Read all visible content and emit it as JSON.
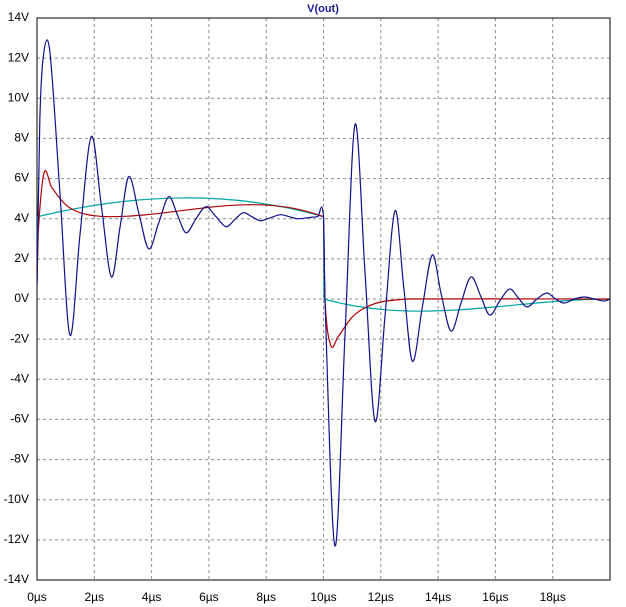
{
  "chart_data": {
    "type": "line",
    "title": "V(out)",
    "title_color": "#1a1aa0",
    "xlim": [
      0,
      20
    ],
    "ylim": [
      -14,
      14
    ],
    "xticks": [
      {
        "value": 0,
        "label": "0µs"
      },
      {
        "value": 2,
        "label": "2µs"
      },
      {
        "value": 4,
        "label": "4µs"
      },
      {
        "value": 6,
        "label": "6µs"
      },
      {
        "value": 8,
        "label": "8µs"
      },
      {
        "value": 10,
        "label": "10µs"
      },
      {
        "value": 12,
        "label": "12µs"
      },
      {
        "value": 14,
        "label": "14µs"
      },
      {
        "value": 16,
        "label": "16µs"
      },
      {
        "value": 18,
        "label": "18µs"
      }
    ],
    "yticks": [
      {
        "value": -14,
        "label": "-14V"
      },
      {
        "value": -12,
        "label": "-12V"
      },
      {
        "value": -10,
        "label": "-10V"
      },
      {
        "value": -8,
        "label": "-8V"
      },
      {
        "value": -6,
        "label": "-6V"
      },
      {
        "value": -4,
        "label": "-4V"
      },
      {
        "value": -2,
        "label": "-2V"
      },
      {
        "value": 0,
        "label": "0V"
      },
      {
        "value": 2,
        "label": "2V"
      },
      {
        "value": 4,
        "label": "4V"
      },
      {
        "value": 6,
        "label": "6V"
      },
      {
        "value": 8,
        "label": "8V"
      },
      {
        "value": 10,
        "label": "10V"
      },
      {
        "value": 12,
        "label": "12V"
      },
      {
        "value": 14,
        "label": "14V"
      }
    ],
    "grid": true,
    "series": [
      {
        "color": "#00a6a6",
        "x": [
          0,
          0.02,
          10,
          10.02,
          20
        ],
        "values": [
          0.7,
          4.1,
          4.1,
          0,
          0
        ]
      },
      {
        "color": "#b00000",
        "x": [
          0,
          0.05,
          0.25,
          0.5,
          1,
          1.5,
          2,
          2.5,
          10,
          10.05,
          10.25,
          10.5,
          11,
          11.5,
          12,
          12.5,
          13,
          20
        ],
        "values": [
          0.7,
          3.5,
          6.3,
          5.6,
          4.7,
          4.3,
          4.15,
          4.1,
          4.1,
          0,
          -2.3,
          -1.9,
          -0.9,
          -0.4,
          -0.15,
          -0.05,
          0,
          0
        ]
      },
      {
        "color": "#10108c",
        "x": [
          0,
          0.1,
          0.25,
          0.45,
          0.8,
          1.15,
          1.5,
          1.9,
          2.25,
          2.6,
          2.9,
          3.2,
          3.55,
          3.9,
          4.25,
          4.6,
          4.9,
          5.2,
          5.55,
          5.9,
          6.25,
          6.6,
          6.9,
          7.2,
          7.5,
          7.8,
          8.15,
          8.5,
          8.8,
          9.1,
          9.45,
          9.8,
          10,
          10.05,
          10.4,
          10.75,
          11.1,
          11.45,
          11.8,
          12.15,
          12.5,
          12.8,
          13.1,
          13.45,
          13.8,
          14.1,
          14.45,
          14.8,
          15.15,
          15.5,
          15.8,
          16.15,
          16.5,
          16.8,
          17.1,
          17.45,
          17.8,
          18.1,
          18.4,
          18.75,
          19.1,
          19.45,
          19.8,
          20
        ],
        "values": [
          0.7,
          9,
          12.4,
          12.3,
          5.3,
          -1.8,
          3.2,
          8.1,
          4.6,
          1.1,
          3.6,
          6.1,
          4.3,
          2.5,
          3.8,
          5.1,
          4.2,
          3.3,
          4.0,
          4.6,
          4.1,
          3.6,
          3.95,
          4.3,
          4.1,
          3.9,
          4.05,
          4.2,
          4.1,
          4.0,
          4.05,
          4.1,
          4.1,
          0,
          -12.3,
          -1.8,
          8.7,
          1.3,
          -6.1,
          -0.8,
          4.4,
          0.6,
          -3.1,
          -0.4,
          2.2,
          0.3,
          -1.6,
          -0.2,
          1.1,
          0.1,
          -0.8,
          -0.1,
          0.5,
          0.05,
          -0.4,
          0,
          0.3,
          0,
          -0.2,
          0,
          0.1,
          0,
          -0.1,
          0
        ]
      }
    ]
  }
}
